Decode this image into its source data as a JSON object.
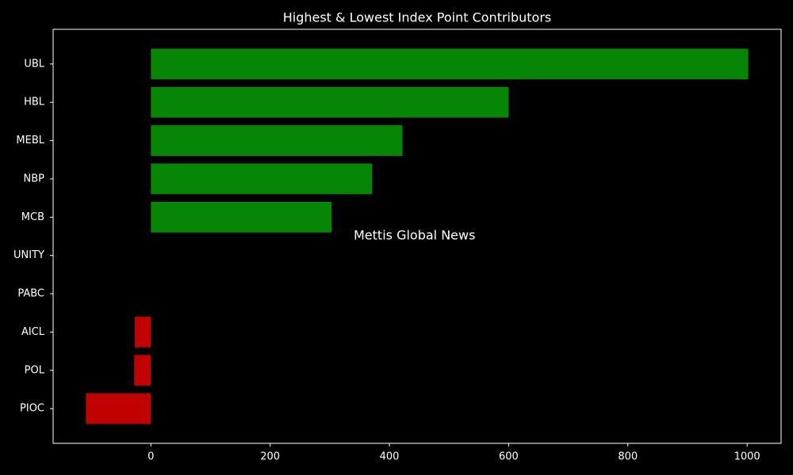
{
  "chart_data": {
    "type": "barh",
    "title": "Highest & Lowest Index Point Contributors",
    "categories": [
      "UBL",
      "HBL",
      "MEBL",
      "NBP",
      "MCB",
      "UNITY",
      "PABC",
      "AICL",
      "POL",
      "PIOC"
    ],
    "values": [
      1002,
      600,
      422,
      371,
      303,
      0,
      0,
      -27,
      -28,
      -109
    ],
    "colors": [
      "#078507",
      "#078507",
      "#078507",
      "#078507",
      "#078507",
      "#078507",
      "#078507",
      "#c10000",
      "#c10000",
      "#c10000"
    ],
    "xlim": [
      -164,
      1057
    ],
    "xticks": [
      0,
      200,
      400,
      600,
      800,
      1000
    ],
    "annotation": {
      "text": "Mettis Global News",
      "color": "#c8742a"
    }
  }
}
